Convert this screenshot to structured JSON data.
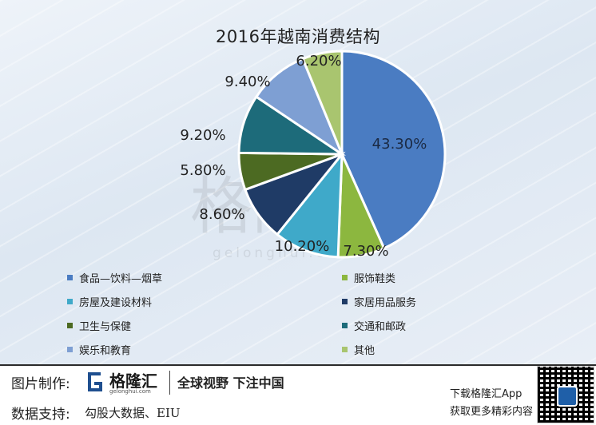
{
  "chart_data": {
    "type": "pie",
    "title": "2016年越南消费结构",
    "slices": [
      {
        "label": "食品—饮料—烟草",
        "value": 43.3,
        "display": "43.30%",
        "color": "#4a7cc2"
      },
      {
        "label": "服饰鞋类",
        "value": 7.3,
        "display": "7.30%",
        "color": "#8cb73f"
      },
      {
        "label": "房屋及建设材料",
        "value": 10.2,
        "display": "10.20%",
        "color": "#3fa9c9"
      },
      {
        "label": "家居用品服务",
        "value": 8.6,
        "display": "8.60%",
        "color": "#1f3b66"
      },
      {
        "label": "卫生与保健",
        "value": 5.8,
        "display": "5.80%",
        "color": "#4c6a22"
      },
      {
        "label": "交通和邮政",
        "value": 9.2,
        "display": "9.20%",
        "color": "#1d6b7a"
      },
      {
        "label": "娱乐和教育",
        "value": 9.4,
        "display": "9.40%",
        "color": "#7e9fd3"
      },
      {
        "label": "其他",
        "value": 6.2,
        "display": "6.20%",
        "color": "#a9c56f"
      }
    ],
    "legend_placement": "bottom"
  },
  "watermark": {
    "text": "格隆汇",
    "subtext": "gelonghui.com"
  },
  "footer": {
    "made_by_label": "图片制作:",
    "brand_logo_text": "格隆汇",
    "brand_logo_sub": "gelonghui.com",
    "slogan": "全球视野 下注中国",
    "data_support_label": "数据支持:",
    "data_support_value": "勾股大数据、EIU",
    "app_line1": "下载格隆汇App",
    "app_line2": "获取更多精彩内容"
  }
}
